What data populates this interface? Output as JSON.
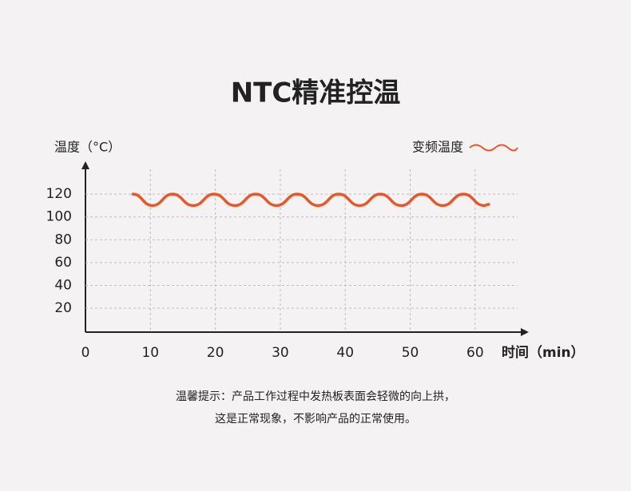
{
  "chart_data": {
    "type": "line",
    "title": "NTC精准控温",
    "y_label": "温度（°C）",
    "x_label": "时间（min）",
    "x": [
      7.3,
      10.3,
      13.4,
      16.6,
      19.8,
      23.0,
      26.2,
      29.4,
      32.6,
      35.8,
      39.0,
      42.2,
      45.4,
      48.6,
      51.8,
      55.0,
      58.2,
      61.4,
      62.1
    ],
    "series": [
      {
        "name": "变频温度",
        "color": "#e8572a",
        "values": [
          120,
          110,
          120,
          110,
          120,
          110,
          120,
          110,
          120,
          110,
          120,
          110,
          120,
          110,
          120,
          110,
          120,
          110,
          111
        ]
      }
    ],
    "xlim": [
      0,
      65
    ],
    "ylim": [
      0,
      140
    ],
    "xticks": [
      0,
      10,
      20,
      30,
      40,
      50,
      60
    ],
    "yticks": [
      20,
      40,
      60,
      80,
      100,
      120
    ],
    "grid": true,
    "legend": "top-right",
    "notes": [
      "温馨提示：产品工作过程中发热板表面会轻微的向上拱，",
      "这是正常现象，不影响产品的正常使用。"
    ]
  }
}
